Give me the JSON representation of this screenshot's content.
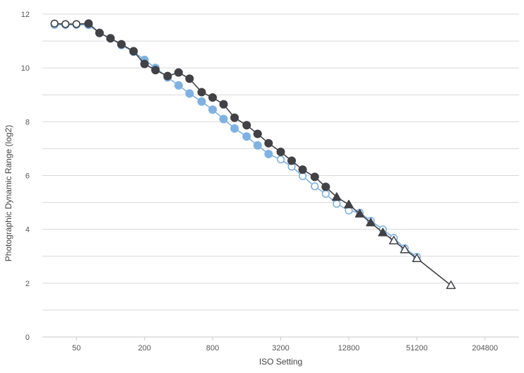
{
  "chart_data": {
    "type": "line",
    "title": "",
    "xlabel": "ISO Setting",
    "ylabel": "Photographic Dynamic Range (log2)",
    "x_scale": "log2",
    "xlim": [
      25,
      409600
    ],
    "ylim": [
      0,
      12
    ],
    "x_ticks": [
      50,
      200,
      800,
      3200,
      12800,
      51200,
      204800
    ],
    "x_tick_labels": [
      "50",
      "200",
      "800",
      "3200",
      "12800",
      "51200",
      "204800"
    ],
    "y_ticks": [
      0,
      2,
      4,
      6,
      8,
      10,
      12
    ],
    "y_tick_labels": [
      "0",
      "2",
      "4",
      "6",
      "8",
      "10",
      "12"
    ],
    "grid": "horizontal",
    "colors": {
      "dark": "#414146",
      "light": "#7fb2e3",
      "grid": "#d9d9d9"
    },
    "series": [
      {
        "color": "#7fb2e3",
        "x": [
          32,
          40,
          50,
          64,
          80,
          100,
          125,
          160,
          200,
          250,
          320,
          400,
          500,
          640,
          800,
          1000,
          1250,
          1600,
          2000,
          2500,
          3200,
          4000,
          5000,
          6400,
          8000,
          10000,
          12800,
          16000,
          20000,
          25600,
          32000,
          40000,
          51200
        ],
        "y": [
          11.6,
          11.6,
          11.6,
          11.6,
          11.3,
          11.1,
          10.85,
          10.6,
          10.3,
          10.0,
          9.65,
          9.35,
          9.05,
          8.75,
          8.45,
          8.1,
          7.75,
          7.45,
          7.12,
          6.8,
          6.6,
          6.33,
          5.98,
          5.6,
          5.32,
          4.95,
          4.7,
          4.62,
          4.32,
          4.0,
          3.68,
          3.3,
          2.98
        ],
        "markers": [
          "open-circle",
          "open-circle",
          "open-circle",
          "filled-circle",
          "filled-circle",
          "filled-circle",
          "filled-circle",
          "filled-circle",
          "filled-circle",
          "filled-circle",
          "filled-circle",
          "filled-circle",
          "filled-circle",
          "filled-circle",
          "filled-circle",
          "filled-circle",
          "filled-circle",
          "filled-circle",
          "filled-circle",
          "filled-circle",
          "open-circle",
          "open-circle",
          "open-circle",
          "open-circle",
          "open-circle",
          "open-circle",
          "open-circle",
          "open-circle",
          "open-circle",
          "open-circle",
          "open-circle",
          "open-circle",
          "open-circle"
        ]
      },
      {
        "color": "#414146",
        "x": [
          32,
          40,
          50,
          64,
          80,
          100,
          125,
          160,
          200,
          250,
          320,
          400,
          500,
          640,
          800,
          1000,
          1250,
          1600,
          2000,
          2500,
          3200,
          4000,
          5000,
          6400,
          8000,
          10000,
          12800,
          16000,
          20000,
          25600,
          32000,
          40000,
          51200,
          102400
        ],
        "y": [
          11.65,
          11.63,
          11.63,
          11.65,
          11.3,
          11.1,
          10.88,
          10.62,
          10.15,
          9.92,
          9.7,
          9.83,
          9.6,
          9.1,
          8.9,
          8.65,
          8.15,
          7.87,
          7.55,
          7.2,
          6.88,
          6.55,
          6.22,
          5.95,
          5.58,
          5.2,
          4.92,
          4.58,
          4.25,
          3.88,
          3.58,
          3.25,
          2.92,
          1.92
        ],
        "markers": [
          "open-circle",
          "open-circle",
          "open-circle",
          "filled-circle",
          "filled-circle",
          "filled-circle",
          "filled-circle",
          "filled-circle",
          "filled-circle",
          "filled-circle",
          "filled-circle",
          "filled-circle",
          "filled-circle",
          "filled-circle",
          "filled-circle",
          "filled-circle",
          "filled-circle",
          "filled-circle",
          "filled-circle",
          "filled-circle",
          "filled-circle",
          "filled-circle",
          "filled-circle",
          "filled-circle",
          "filled-circle",
          "filled-triangle",
          "filled-triangle",
          "filled-triangle",
          "filled-triangle",
          "filled-triangle",
          "open-triangle",
          "open-triangle",
          "open-triangle",
          "open-triangle"
        ]
      }
    ]
  }
}
